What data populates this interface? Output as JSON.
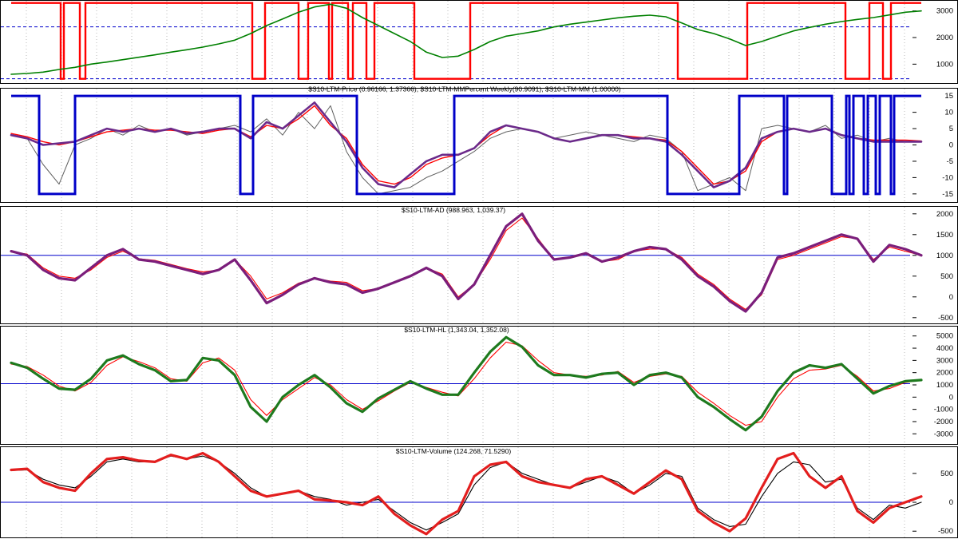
{
  "chart_data": [
    {
      "type": "line",
      "title": "",
      "y_ticks": [
        1000,
        2000,
        3000
      ],
      "ylim": [
        350,
        3350
      ],
      "x": [
        0,
        20,
        40,
        60,
        80,
        100,
        120,
        140,
        160,
        180,
        200,
        220,
        240,
        260,
        280,
        300,
        320,
        340,
        360,
        380,
        400,
        420,
        440,
        460,
        480,
        500,
        520,
        540,
        560,
        580,
        600,
        620,
        640,
        660,
        680,
        700,
        720,
        740,
        760,
        780,
        800,
        820,
        840,
        860,
        880,
        900,
        920,
        940,
        960,
        980,
        1000,
        1020,
        1040,
        1060,
        1080,
        1100,
        1120,
        1140
      ],
      "series": [
        {
          "color": "#008000",
          "values": [
            620,
            650,
            700,
            800,
            880,
            1000,
            1080,
            1170,
            1260,
            1350,
            1450,
            1540,
            1640,
            1760,
            1900,
            2150,
            2450,
            2700,
            2950,
            3150,
            3250,
            3100,
            2750,
            2450,
            2150,
            1850,
            1450,
            1250,
            1300,
            1550,
            1850,
            2050,
            2150,
            2250,
            2400,
            2500,
            2580,
            2660,
            2740,
            2800,
            2840,
            2780,
            2550,
            2300,
            2150,
            1950,
            1700,
            1850,
            2050,
            2250,
            2380,
            2500,
            2600,
            2680,
            2750,
            2850,
            2950,
            3000
          ]
        }
      ],
      "guide_lines": [
        2400,
        450
      ],
      "signal": {
        "color": "#ff0000",
        "high": 3300,
        "low": 450,
        "steps": [
          [
            0,
            "high"
          ],
          [
            62,
            "low"
          ],
          [
            66,
            "high"
          ],
          [
            86,
            "low"
          ],
          [
            93,
            "high"
          ],
          [
            302,
            "low"
          ],
          [
            318,
            "high"
          ],
          [
            360,
            "low"
          ],
          [
            372,
            "high"
          ],
          [
            398,
            "low"
          ],
          [
            402,
            "high"
          ],
          [
            422,
            "low"
          ],
          [
            428,
            "high"
          ],
          [
            445,
            "low"
          ],
          [
            455,
            "high"
          ],
          [
            505,
            "low"
          ],
          [
            575,
            "high"
          ],
          [
            835,
            "low"
          ],
          [
            922,
            "high"
          ],
          [
            1045,
            "low"
          ],
          [
            1075,
            "high"
          ],
          [
            1092,
            "low"
          ],
          [
            1102,
            "high"
          ],
          [
            1140,
            "high"
          ]
        ]
      }
    },
    {
      "type": "line",
      "title": "$S10-LTM-Price (0.96166, 1.37366), $S10-LTM-MMPercent Weekly(90.9091), $S10-LTM-MM (1.00000)",
      "y_ticks": [
        -15,
        -10,
        -5,
        0,
        5,
        10,
        15
      ],
      "ylim": [
        -17,
        17
      ],
      "x": [
        0,
        20,
        40,
        60,
        80,
        100,
        120,
        140,
        160,
        180,
        200,
        220,
        240,
        260,
        280,
        300,
        320,
        340,
        360,
        380,
        400,
        420,
        440,
        460,
        480,
        500,
        520,
        540,
        560,
        580,
        600,
        620,
        640,
        660,
        680,
        700,
        720,
        740,
        760,
        780,
        800,
        820,
        840,
        860,
        880,
        900,
        920,
        940,
        960,
        980,
        1000,
        1020,
        1040,
        1060,
        1080,
        1100,
        1120,
        1140
      ],
      "series": [
        {
          "color": "#606060",
          "values": [
            3,
            2,
            -6,
            -12,
            0,
            2,
            5,
            3,
            6,
            4,
            5,
            3,
            4,
            5,
            6,
            4,
            8,
            3,
            10,
            5,
            12,
            -2,
            -10,
            -15,
            -14,
            -13,
            -10,
            -8,
            -5,
            -2,
            2,
            4,
            5,
            4,
            2,
            3,
            4,
            3,
            2,
            1,
            3,
            2,
            -2,
            -14,
            -12,
            -10,
            -14,
            5,
            6,
            5,
            4,
            6,
            2,
            3,
            1,
            2,
            1,
            1
          ]
        },
        {
          "color": "#ff0000",
          "values": [
            3.5,
            2.5,
            1,
            0,
            1,
            2.5,
            4,
            4.5,
            5,
            4.5,
            4.5,
            4,
            3.5,
            4.5,
            5,
            2.5,
            6,
            5,
            8,
            12,
            6,
            2,
            -6,
            -11,
            -12,
            -10,
            -6,
            -4,
            -3,
            -1,
            3,
            6,
            5,
            4,
            2,
            1,
            2,
            3,
            3,
            2.5,
            2,
            1.5,
            -2,
            -7,
            -12,
            -11,
            -8,
            1,
            4,
            5,
            4,
            5,
            3,
            2,
            1.5,
            1.5,
            1.5,
            1.2
          ]
        },
        {
          "color": "#6b2a8a",
          "values": [
            3,
            2,
            0,
            0.5,
            1,
            3,
            5,
            4,
            5,
            4,
            5,
            3.5,
            4,
            5,
            5,
            2,
            7,
            5,
            9,
            13,
            7,
            1,
            -7,
            -12,
            -13,
            -9,
            -5,
            -3,
            -3,
            -1,
            4,
            6,
            5,
            4,
            2,
            1,
            2,
            3,
            3,
            2,
            2,
            1,
            -3,
            -8,
            -13,
            -11,
            -7,
            2,
            4,
            5,
            4,
            5,
            3,
            2,
            1,
            1,
            1,
            1
          ]
        }
      ],
      "guide_lines": [],
      "signal": {
        "color": "#0000c8",
        "high": 15,
        "low": -15,
        "steps": [
          [
            0,
            "high"
          ],
          [
            35,
            "low"
          ],
          [
            80,
            "high"
          ],
          [
            287,
            "low"
          ],
          [
            303,
            "high"
          ],
          [
            433,
            "low"
          ],
          [
            555,
            "high"
          ],
          [
            822,
            "low"
          ],
          [
            912,
            "high"
          ],
          [
            968,
            "low"
          ],
          [
            972,
            "high"
          ],
          [
            1028,
            "low"
          ],
          [
            1046,
            "high"
          ],
          [
            1050,
            "low"
          ],
          [
            1055,
            "high"
          ],
          [
            1068,
            "low"
          ],
          [
            1073,
            "high"
          ],
          [
            1083,
            "low"
          ],
          [
            1088,
            "high"
          ],
          [
            1102,
            "low"
          ],
          [
            1106,
            "high"
          ],
          [
            1140,
            "high"
          ]
        ]
      }
    },
    {
      "type": "line",
      "title": "$S10-LTM-AD (988.963, 1,039.37)",
      "y_ticks": [
        -500,
        0,
        500,
        1000,
        1500,
        2000
      ],
      "ylim": [
        -600,
        2150
      ],
      "x": [
        0,
        20,
        40,
        60,
        80,
        100,
        120,
        140,
        160,
        180,
        200,
        220,
        240,
        260,
        280,
        300,
        320,
        340,
        360,
        380,
        400,
        420,
        440,
        460,
        480,
        500,
        520,
        540,
        560,
        580,
        600,
        620,
        640,
        660,
        680,
        700,
        720,
        740,
        760,
        780,
        800,
        820,
        840,
        860,
        880,
        900,
        920,
        940,
        960,
        980,
        1000,
        1020,
        1040,
        1060,
        1080,
        1100,
        1120,
        1140
      ],
      "series": [
        {
          "color": "#ff0000",
          "values": [
            1080,
            1030,
            700,
            500,
            450,
            650,
            950,
            1100,
            920,
            880,
            780,
            680,
            600,
            650,
            900,
            500,
            -50,
            100,
            330,
            450,
            380,
            350,
            150,
            200,
            350,
            500,
            700,
            550,
            0,
            300,
            900,
            1600,
            1900,
            1400,
            900,
            950,
            1050,
            850,
            900,
            1100,
            1150,
            1150,
            950,
            550,
            300,
            -50,
            -300,
            50,
            900,
            1000,
            1150,
            1300,
            1450,
            1400,
            900,
            1200,
            1100,
            1000
          ]
        },
        {
          "color": "#7b1e7b",
          "values": [
            1100,
            1000,
            650,
            450,
            400,
            700,
            1000,
            1150,
            900,
            850,
            750,
            650,
            550,
            650,
            900,
            400,
            -150,
            50,
            300,
            450,
            350,
            300,
            100,
            200,
            350,
            500,
            700,
            500,
            -50,
            300,
            1000,
            1700,
            2000,
            1350,
            900,
            950,
            1050,
            850,
            950,
            1100,
            1200,
            1150,
            900,
            500,
            250,
            -100,
            -350,
            100,
            950,
            1050,
            1200,
            1350,
            1500,
            1400,
            850,
            1250,
            1150,
            1000
          ]
        }
      ],
      "guide_lines": [
        1000
      ],
      "signal": null
    },
    {
      "type": "line",
      "title": "$S10-LTM-HL (1,343.04, 1,352.08)",
      "y_ticks": [
        -3000,
        -2000,
        -1000,
        0,
        1000,
        2000,
        3000,
        4000,
        5000
      ],
      "ylim": [
        -3700,
        5700
      ],
      "x": [
        0,
        20,
        40,
        60,
        80,
        100,
        120,
        140,
        160,
        180,
        200,
        220,
        240,
        260,
        280,
        300,
        320,
        340,
        360,
        380,
        400,
        420,
        440,
        460,
        480,
        500,
        520,
        540,
        560,
        580,
        600,
        620,
        640,
        660,
        680,
        700,
        720,
        740,
        760,
        780,
        800,
        820,
        840,
        860,
        880,
        900,
        920,
        940,
        960,
        980,
        1000,
        1020,
        1040,
        1060,
        1080,
        1100,
        1120,
        1140
      ],
      "series": [
        {
          "color": "#ff0000",
          "values": [
            2700,
            2500,
            1800,
            900,
            500,
            1200,
            2600,
            3300,
            2900,
            2400,
            1500,
            1300,
            2800,
            3200,
            2200,
            -200,
            -1500,
            -200,
            700,
            1600,
            1000,
            -200,
            -1000,
            -300,
            500,
            1200,
            800,
            400,
            100,
            1500,
            3200,
            4500,
            4200,
            3000,
            2000,
            1800,
            1700,
            1800,
            2100,
            1200,
            1700,
            1900,
            1700,
            400,
            -500,
            -1500,
            -2300,
            -2000,
            0,
            1500,
            2200,
            2300,
            2600,
            1700,
            500,
            700,
            1200,
            1400
          ]
        },
        {
          "color": "#1e7a1e",
          "values": [
            2800,
            2400,
            1500,
            700,
            600,
            1500,
            3000,
            3400,
            2700,
            2200,
            1300,
            1400,
            3200,
            3000,
            1800,
            -800,
            -2000,
            0,
            1000,
            1800,
            800,
            -500,
            -1200,
            -100,
            600,
            1300,
            700,
            200,
            200,
            2000,
            3700,
            4900,
            4100,
            2600,
            1800,
            1800,
            1600,
            1900,
            2000,
            1000,
            1800,
            2000,
            1600,
            0,
            -800,
            -1800,
            -2700,
            -1600,
            500,
            2000,
            2600,
            2400,
            2700,
            1500,
            300,
            900,
            1300,
            1400
          ]
        }
      ],
      "guide_lines": [
        1100
      ],
      "signal": null
    },
    {
      "type": "line",
      "title": "$S10-LTM-Volume (124.268, 71.5290)",
      "y_ticks": [
        -500,
        0,
        500
      ],
      "ylim": [
        -580,
        940
      ],
      "x": [
        0,
        20,
        40,
        60,
        80,
        100,
        120,
        140,
        160,
        180,
        200,
        220,
        240,
        260,
        280,
        300,
        320,
        340,
        360,
        380,
        400,
        420,
        440,
        460,
        480,
        500,
        520,
        540,
        560,
        580,
        600,
        620,
        640,
        660,
        680,
        700,
        720,
        740,
        760,
        780,
        800,
        820,
        840,
        860,
        880,
        900,
        920,
        940,
        960,
        980,
        1000,
        1020,
        1040,
        1060,
        1080,
        1100,
        1120,
        1140
      ],
      "series": [
        {
          "color": "#000000",
          "values": [
            550,
            560,
            400,
            300,
            250,
            450,
            700,
            750,
            700,
            700,
            800,
            750,
            800,
            700,
            500,
            250,
            100,
            150,
            200,
            100,
            50,
            -50,
            0,
            50,
            -150,
            -350,
            -480,
            -350,
            -200,
            300,
            600,
            700,
            500,
            400,
            300,
            250,
            350,
            450,
            350,
            150,
            300,
            500,
            450,
            -100,
            -300,
            -420,
            -380,
            100,
            500,
            700,
            650,
            350,
            400,
            -100,
            -300,
            -50,
            -100,
            0
          ]
        },
        {
          "color": "#e31e1e",
          "values": [
            560,
            580,
            350,
            250,
            200,
            500,
            750,
            780,
            720,
            700,
            820,
            750,
            850,
            700,
            450,
            200,
            100,
            150,
            200,
            50,
            30,
            0,
            -50,
            100,
            -200,
            -400,
            -550,
            -300,
            -150,
            450,
            650,
            700,
            450,
            350,
            300,
            250,
            400,
            450,
            300,
            150,
            350,
            550,
            400,
            -150,
            -350,
            -500,
            -280,
            250,
            750,
            850,
            450,
            250,
            450,
            -150,
            -350,
            -100,
            0,
            100
          ]
        }
      ],
      "guide_lines": [
        0
      ],
      "signal": null
    }
  ]
}
